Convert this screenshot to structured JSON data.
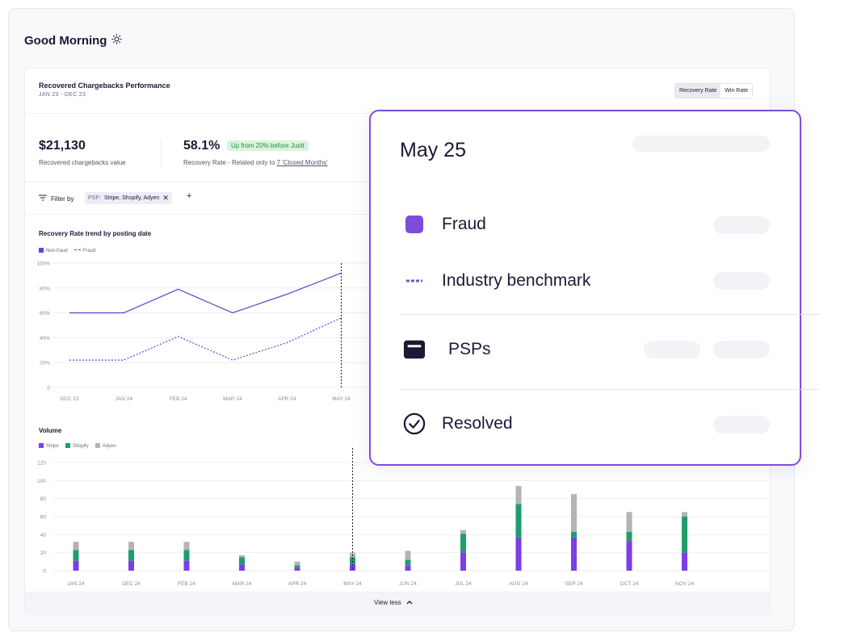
{
  "greeting": {
    "title": "Good Morning",
    "icon": "sun-icon"
  },
  "card": {
    "title": "Recovered Chargebacks Performance",
    "date_range": "JAN 23 - DEC 23",
    "toggle": {
      "recovery_rate": "Recovery Rate",
      "win_rate": "Win Rate",
      "selected": "Recovery Rate"
    }
  },
  "stats": {
    "recovered_value": "$21,130",
    "recovered_label": "Recovered chargebacks value",
    "recovery_rate": "58.1%",
    "recovery_badge": "Up from 20% before Justt",
    "recovery_label_prefix": "Recovery Rate - Related only to ",
    "recovery_label_link": "7 'Closed Months'"
  },
  "filter": {
    "label": "Filter by",
    "chip_key": "PSP:",
    "chip_value": "Stripe, Shopify, Adyen",
    "add": "+"
  },
  "trend_chart_title": "Recovery Rate trend by posting date",
  "volume_chart_title": "Volume",
  "footer": {
    "view_less": "View less"
  },
  "colors": {
    "accent": "#7d4cdb",
    "stripe": "#7b3fe4",
    "shopify": "#1f9d6b",
    "adyen": "#b3b3b8",
    "badge_bg": "#d8f5dc",
    "badge_text": "#2a8a43"
  },
  "chart_data": [
    {
      "type": "line",
      "title": "Recovery Rate trend by posting date",
      "categories": [
        "DEC 23",
        "JAN 24",
        "FEB 24",
        "MAR 24",
        "APR 24",
        "MAY 24"
      ],
      "y_ticks": [
        "100%",
        "80%",
        "60%",
        "40%",
        "20%",
        "0"
      ],
      "ylim": [
        0,
        100
      ],
      "series": [
        {
          "name": "Non-fraud",
          "values": [
            60,
            60,
            79,
            60,
            75,
            92
          ],
          "style": "solid",
          "color": "#6a3fd1"
        },
        {
          "name": "Fraud",
          "values": [
            22,
            22,
            41,
            22,
            36,
            56
          ],
          "style": "dashed",
          "color": "#6a3fd1"
        }
      ],
      "highlight_category": "MAY 24",
      "grid": true,
      "legend": "top-left"
    },
    {
      "type": "bar",
      "stacked": true,
      "title": "Volume",
      "categories": [
        "JAN 24",
        "DEC 24",
        "FEB 24",
        "MAR 24",
        "APR 24",
        "MAY 24",
        "JUN 24",
        "JUL 24",
        "AUG 24",
        "SEP 24",
        "OCT 24",
        "NOV 24"
      ],
      "y_ticks": [
        "120",
        "100",
        "80",
        "60",
        "40",
        "20",
        "0"
      ],
      "ylim": [
        0,
        120
      ],
      "series": [
        {
          "name": "Stripe",
          "values": [
            11,
            11,
            11,
            7,
            3,
            7,
            6,
            20,
            37,
            37,
            33,
            20
          ],
          "color": "#7b3fe4"
        },
        {
          "name": "Shopify",
          "values": [
            12,
            12,
            12,
            8,
            3,
            8,
            6,
            21,
            37,
            6,
            10,
            40
          ],
          "color": "#1f9d6b"
        },
        {
          "name": "Adyen",
          "values": [
            9,
            9,
            9,
            2,
            4,
            5,
            10,
            4,
            20,
            42,
            22,
            5
          ],
          "color": "#b3b3b8"
        }
      ],
      "highlight_category": "MAY 24",
      "grid": true,
      "legend": "top-left"
    }
  ],
  "tooltip": {
    "date": "May 25",
    "rows": [
      {
        "label": "Fraud",
        "icon": "purple-square-icon"
      },
      {
        "label": "Industry benchmark",
        "icon": "dashed-line-icon"
      },
      {
        "label": "PSPs",
        "icon": "wallet-icon"
      },
      {
        "label": "Resolved",
        "icon": "check-circle-icon"
      }
    ]
  }
}
